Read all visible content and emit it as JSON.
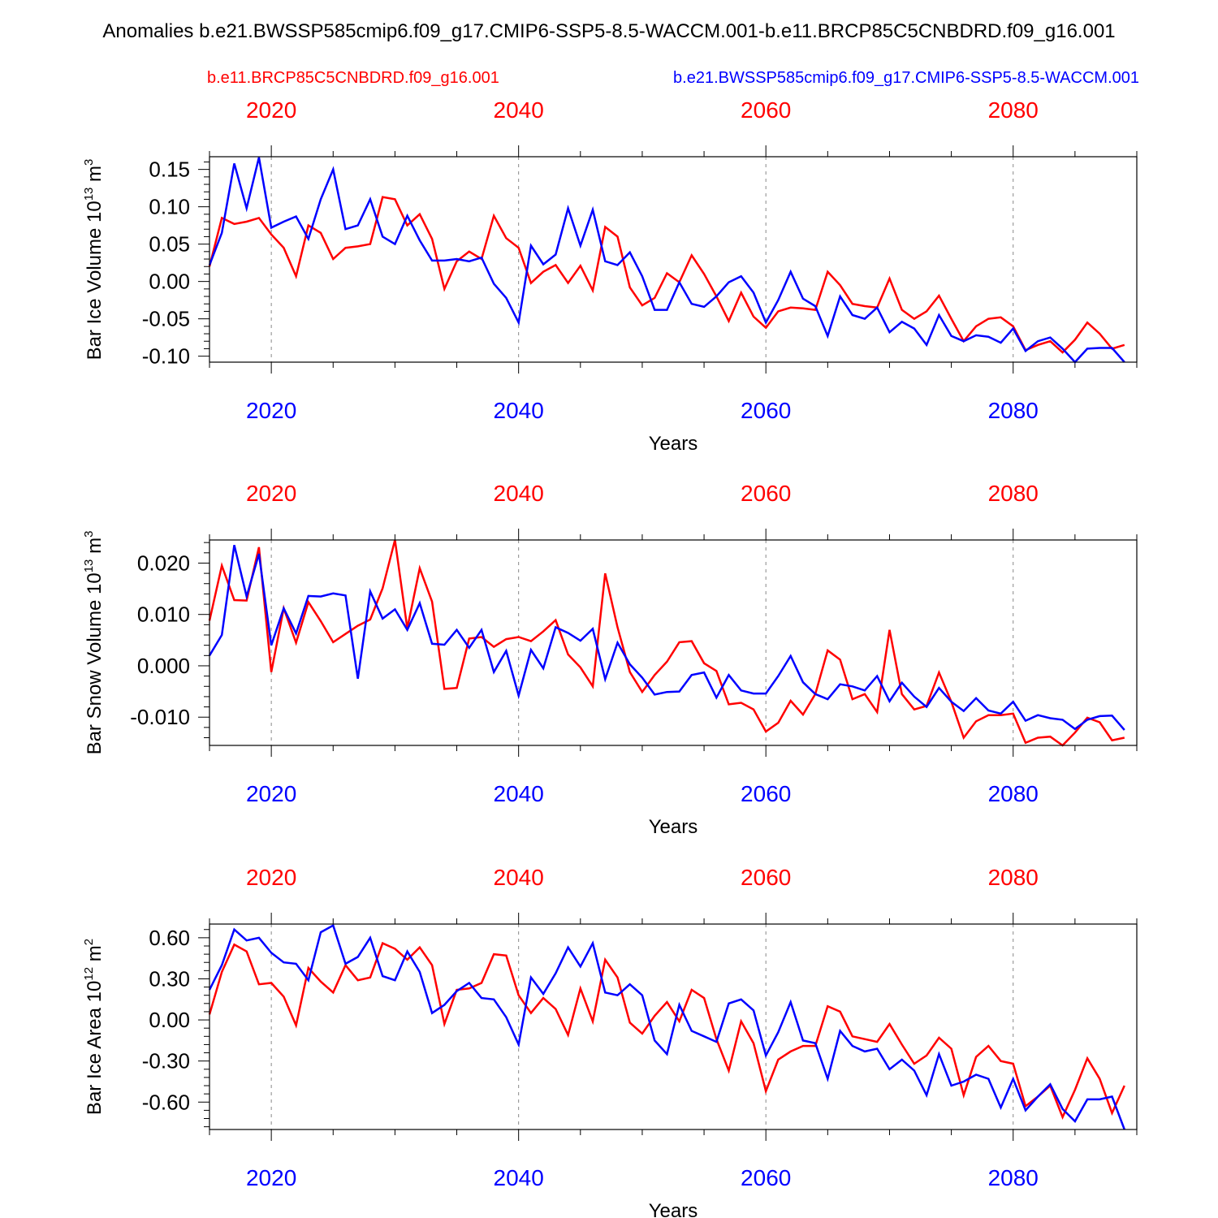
{
  "title": "Anomalies b.e21.BWSSP585cmip6.f09_g17.CMIP6-SSP5-8.5-WACCM.001-b.e11.BRCP85C5CNBDRD.f09_g16.001",
  "legend": {
    "red_label": "b.e11.BRCP85C5CNBDRD.f09_g16.001",
    "blue_label": "b.e21.BWSSP585cmip6.f09_g17.CMIP6-SSP5-8.5-WACCM.001"
  },
  "colors": {
    "red": "#ff0000",
    "blue": "#0000ff",
    "axis": "#000000",
    "grid": "#888888"
  },
  "chart_data": [
    {
      "type": "line",
      "ylabel_main": "Bar Ice Volume 10",
      "ylabel_exp": "13",
      "ylabel_unit": "m",
      "ylabel_unit_exp": "3",
      "xlabel": "Years",
      "xlim": [
        2015,
        2090
      ],
      "ylim": [
        -0.108,
        0.167
      ],
      "yticks": [
        -0.1,
        -0.05,
        0.0,
        0.05,
        0.1,
        0.15
      ],
      "ytick_labels": [
        "-0.10",
        "-0.05",
        "0.00",
        "0.05",
        "0.10",
        "0.15"
      ],
      "xticks": [
        2020,
        2040,
        2060,
        2080
      ],
      "xtick_labels": [
        "2020",
        "2040",
        "2060",
        "2080"
      ],
      "x_start": 2015,
      "series": [
        {
          "name": "b.e11.BRCP85C5CNBDRD.f09_g16.001",
          "color": "red",
          "values": [
            0.02,
            0.085,
            0.077,
            0.08,
            0.085,
            0.063,
            0.045,
            0.007,
            0.075,
            0.065,
            0.03,
            0.045,
            0.047,
            0.05,
            0.113,
            0.11,
            0.075,
            0.09,
            0.057,
            -0.01,
            0.027,
            0.04,
            0.03,
            0.088,
            0.058,
            0.045,
            -0.002,
            0.013,
            0.022,
            -0.002,
            0.021,
            -0.012,
            0.073,
            0.06,
            -0.008,
            -0.032,
            -0.022,
            0.011,
            -0.001,
            0.035,
            0.01,
            -0.02,
            -0.053,
            -0.015,
            -0.047,
            -0.062,
            -0.04,
            -0.035,
            -0.036,
            -0.038,
            0.013,
            -0.005,
            -0.03,
            -0.033,
            -0.035,
            0.004,
            -0.038,
            -0.05,
            -0.04,
            -0.019,
            -0.05,
            -0.08,
            -0.06,
            -0.05,
            -0.048,
            -0.06,
            -0.092,
            -0.085,
            -0.08,
            -0.095,
            -0.078,
            -0.055,
            -0.07,
            -0.09,
            -0.085
          ]
        },
        {
          "name": "b.e21.BWSSP585cmip6.f09_g17.CMIP6-SSP5-8.5-WACCM.001",
          "color": "blue",
          "values": [
            0.022,
            0.065,
            0.158,
            0.098,
            0.166,
            0.072,
            0.08,
            0.087,
            0.057,
            0.11,
            0.15,
            0.07,
            0.075,
            0.11,
            0.06,
            0.05,
            0.088,
            0.055,
            0.028,
            0.028,
            0.03,
            0.027,
            0.032,
            -0.003,
            -0.022,
            -0.055,
            0.048,
            0.023,
            0.036,
            0.098,
            0.048,
            0.096,
            0.027,
            0.022,
            0.039,
            0.007,
            -0.038,
            -0.038,
            -0.001,
            -0.03,
            -0.034,
            -0.02,
            -0.001,
            0.007,
            -0.015,
            -0.055,
            -0.025,
            0.013,
            -0.023,
            -0.033,
            -0.073,
            -0.02,
            -0.045,
            -0.05,
            -0.035,
            -0.068,
            -0.054,
            -0.063,
            -0.085,
            -0.045,
            -0.073,
            -0.08,
            -0.072,
            -0.074,
            -0.082,
            -0.063,
            -0.093,
            -0.08,
            -0.075,
            -0.09,
            -0.108,
            -0.09,
            -0.089,
            -0.089,
            -0.108
          ]
        }
      ]
    },
    {
      "type": "line",
      "ylabel_main": "Bar Snow Volume 10",
      "ylabel_exp": "13",
      "ylabel_unit": "m",
      "ylabel_unit_exp": "3",
      "xlabel": "Years",
      "xlim": [
        2015,
        2090
      ],
      "ylim": [
        -0.0155,
        0.0245
      ],
      "yticks": [
        -0.01,
        0.0,
        0.01,
        0.02
      ],
      "ytick_labels": [
        "-0.010",
        "0.000",
        "0.010",
        "0.020"
      ],
      "xticks": [
        2020,
        2040,
        2060,
        2080
      ],
      "xtick_labels": [
        "2020",
        "2040",
        "2060",
        "2080"
      ],
      "x_start": 2015,
      "series": [
        {
          "name": "b.e11.BRCP85C5CNBDRD.f09_g16.001",
          "color": "red",
          "values": [
            0.0088,
            0.0195,
            0.0128,
            0.0127,
            0.0231,
            -0.0012,
            0.0112,
            0.0045,
            0.0124,
            0.0087,
            0.0046,
            0.0062,
            0.0078,
            0.009,
            0.0151,
            0.0245,
            0.0073,
            0.019,
            0.0125,
            -0.0045,
            -0.0043,
            0.0053,
            0.0056,
            0.0037,
            0.0052,
            0.0056,
            0.0048,
            0.0067,
            0.0089,
            0.0022,
            -0.0003,
            -0.004,
            0.018,
            0.0075,
            -0.0012,
            -0.0051,
            -0.0018,
            0.0008,
            0.0046,
            0.0048,
            0.0005,
            -0.001,
            -0.0075,
            -0.0072,
            -0.0085,
            -0.0128,
            -0.0111,
            -0.0068,
            -0.0095,
            -0.0055,
            0.003,
            0.0012,
            -0.0065,
            -0.0055,
            -0.009,
            0.007,
            -0.0055,
            -0.0085,
            -0.0078,
            -0.0013,
            -0.007,
            -0.014,
            -0.0108,
            -0.0096,
            -0.0096,
            -0.0093,
            -0.015,
            -0.014,
            -0.0138,
            -0.0155,
            -0.013,
            -0.0101,
            -0.011,
            -0.0145,
            -0.014
          ]
        },
        {
          "name": "b.e21.BWSSP585cmip6.f09_g17.CMIP6-SSP5-8.5-WACCM.001",
          "color": "blue",
          "values": [
            0.002,
            0.006,
            0.0235,
            0.0135,
            0.0218,
            0.004,
            0.0112,
            0.0063,
            0.0136,
            0.0135,
            0.0141,
            0.0137,
            -0.0025,
            0.0145,
            0.0092,
            0.011,
            0.007,
            0.0122,
            0.0043,
            0.0041,
            0.007,
            0.0035,
            0.007,
            -0.0012,
            0.0029,
            -0.0058,
            0.0031,
            -0.0005,
            0.0075,
            0.0064,
            0.0049,
            0.0072,
            -0.0026,
            0.0045,
            0.0003,
            -0.0023,
            -0.0056,
            -0.0051,
            -0.005,
            -0.0018,
            -0.0013,
            -0.0062,
            -0.0018,
            -0.0048,
            -0.0054,
            -0.0054,
            -0.002,
            0.0019,
            -0.0032,
            -0.0055,
            -0.0065,
            -0.0036,
            -0.004,
            -0.0048,
            -0.002,
            -0.0069,
            -0.0033,
            -0.006,
            -0.008,
            -0.0043,
            -0.007,
            -0.0088,
            -0.0063,
            -0.0087,
            -0.0093,
            -0.007,
            -0.0107,
            -0.0096,
            -0.0102,
            -0.0105,
            -0.0123,
            -0.0105,
            -0.0098,
            -0.0097,
            -0.0125
          ]
        }
      ]
    },
    {
      "type": "line",
      "ylabel_main": "Bar Ice Area 10",
      "ylabel_exp": "12",
      "ylabel_unit": "m",
      "ylabel_unit_exp": "2",
      "xlabel": "Years",
      "xlim": [
        2015,
        2090
      ],
      "ylim": [
        -0.8,
        0.7
      ],
      "yticks": [
        -0.6,
        -0.3,
        0.0,
        0.3,
        0.6
      ],
      "ytick_labels": [
        "-0.60",
        "-0.30",
        "0.00",
        "0.30",
        "0.60"
      ],
      "xticks": [
        2020,
        2040,
        2060,
        2080
      ],
      "xtick_labels": [
        "2020",
        "2040",
        "2060",
        "2080"
      ],
      "x_start": 2015,
      "series": [
        {
          "name": "b.e11.BRCP85C5CNBDRD.f09_g16.001",
          "color": "red",
          "values": [
            0.04,
            0.35,
            0.55,
            0.5,
            0.26,
            0.27,
            0.17,
            -0.04,
            0.38,
            0.28,
            0.2,
            0.4,
            0.29,
            0.31,
            0.56,
            0.52,
            0.44,
            0.53,
            0.4,
            -0.03,
            0.22,
            0.23,
            0.27,
            0.48,
            0.47,
            0.18,
            0.05,
            0.16,
            0.08,
            -0.11,
            0.23,
            -0.01,
            0.44,
            0.31,
            -0.02,
            -0.1,
            0.03,
            0.13,
            -0.01,
            0.22,
            0.16,
            -0.14,
            -0.37,
            -0.01,
            -0.17,
            -0.52,
            -0.29,
            -0.23,
            -0.19,
            -0.19,
            0.1,
            0.06,
            -0.12,
            -0.14,
            -0.16,
            -0.03,
            -0.18,
            -0.32,
            -0.26,
            -0.13,
            -0.21,
            -0.55,
            -0.27,
            -0.19,
            -0.3,
            -0.32,
            -0.63,
            -0.56,
            -0.48,
            -0.71,
            -0.51,
            -0.28,
            -0.43,
            -0.68,
            -0.48
          ]
        },
        {
          "name": "b.e21.BWSSP585cmip6.f09_g17.CMIP6-SSP5-8.5-WACCM.001",
          "color": "blue",
          "values": [
            0.22,
            0.4,
            0.66,
            0.58,
            0.6,
            0.49,
            0.42,
            0.41,
            0.29,
            0.64,
            0.69,
            0.41,
            0.46,
            0.6,
            0.32,
            0.29,
            0.5,
            0.35,
            0.05,
            0.11,
            0.21,
            0.27,
            0.16,
            0.15,
            0.02,
            -0.18,
            0.31,
            0.19,
            0.34,
            0.53,
            0.39,
            0.56,
            0.2,
            0.18,
            0.26,
            0.18,
            -0.15,
            -0.25,
            0.11,
            -0.08,
            -0.12,
            -0.16,
            0.12,
            0.15,
            0.07,
            -0.26,
            -0.09,
            0.13,
            -0.15,
            -0.17,
            -0.43,
            -0.08,
            -0.19,
            -0.23,
            -0.21,
            -0.36,
            -0.29,
            -0.37,
            -0.55,
            -0.25,
            -0.48,
            -0.45,
            -0.4,
            -0.43,
            -0.64,
            -0.43,
            -0.66,
            -0.56,
            -0.47,
            -0.65,
            -0.74,
            -0.58,
            -0.58,
            -0.56,
            -0.8
          ]
        }
      ]
    }
  ]
}
